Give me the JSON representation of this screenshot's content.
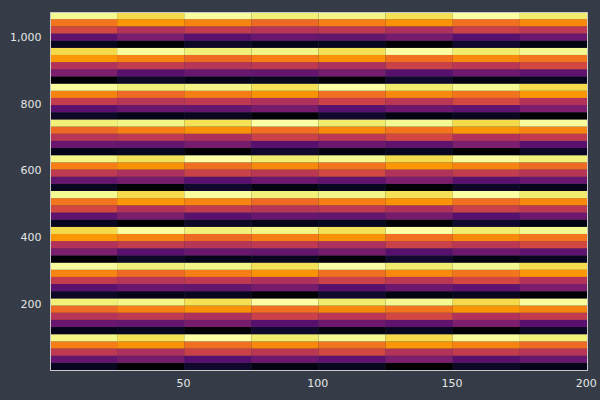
{
  "chart_data": {
    "type": "heatmap",
    "x_edges": [
      0.5,
      25.5,
      50.5,
      75.5,
      100.5,
      125.5,
      150.5,
      175.5,
      200.5
    ],
    "y_edges": [
      0.5,
      22,
      43.5,
      65,
      86.5,
      108,
      129.5,
      151,
      172.5,
      194,
      215.5,
      237,
      258.5,
      280,
      301.5,
      323,
      344.5,
      366,
      387.5,
      409,
      430.5,
      452,
      473.5,
      495,
      516.5,
      538,
      559.5,
      581,
      602.5,
      624,
      645.5,
      667,
      688.5,
      710,
      731.5,
      753,
      774.5,
      796,
      817.5,
      839,
      860.5,
      882,
      903.5,
      925,
      946.5,
      968,
      989.5,
      1011,
      1032.5,
      1054,
      1075.5
    ],
    "values": [
      [
        0.1,
        0.06,
        0.12,
        0.08,
        0.1,
        0.05,
        0.11,
        0.09
      ],
      [
        0.3,
        0.34,
        0.27,
        0.32,
        0.29,
        0.35,
        0.28,
        0.31
      ],
      [
        0.5,
        0.46,
        0.53,
        0.49,
        0.55,
        0.47,
        0.51,
        0.48
      ],
      [
        0.68,
        0.72,
        0.65,
        0.7,
        0.66,
        0.73,
        0.69,
        0.64
      ],
      [
        0.9,
        0.86,
        0.93,
        0.88,
        0.91,
        0.85,
        0.92,
        0.89
      ],
      [
        0.09,
        0.1,
        0.06,
        0.12,
        0.08,
        0.1,
        0.05,
        0.11
      ],
      [
        0.31,
        0.3,
        0.34,
        0.27,
        0.32,
        0.29,
        0.35,
        0.28
      ],
      [
        0.48,
        0.5,
        0.46,
        0.53,
        0.49,
        0.55,
        0.47,
        0.51
      ],
      [
        0.64,
        0.68,
        0.72,
        0.65,
        0.7,
        0.66,
        0.73,
        0.69
      ],
      [
        0.89,
        0.9,
        0.86,
        0.93,
        0.88,
        0.91,
        0.85,
        0.92
      ],
      [
        0.11,
        0.09,
        0.1,
        0.06,
        0.12,
        0.08,
        0.1,
        0.05
      ],
      [
        0.28,
        0.31,
        0.3,
        0.34,
        0.27,
        0.32,
        0.29,
        0.35
      ],
      [
        0.51,
        0.48,
        0.5,
        0.46,
        0.53,
        0.49,
        0.55,
        0.47
      ],
      [
        0.69,
        0.64,
        0.68,
        0.72,
        0.65,
        0.7,
        0.66,
        0.73
      ],
      [
        0.92,
        0.89,
        0.9,
        0.86,
        0.93,
        0.88,
        0.91,
        0.85
      ],
      [
        0.05,
        0.11,
        0.09,
        0.1,
        0.06,
        0.12,
        0.08,
        0.1
      ],
      [
        0.35,
        0.28,
        0.31,
        0.3,
        0.34,
        0.27,
        0.32,
        0.29
      ],
      [
        0.47,
        0.51,
        0.48,
        0.5,
        0.46,
        0.53,
        0.49,
        0.55
      ],
      [
        0.73,
        0.69,
        0.64,
        0.68,
        0.72,
        0.65,
        0.7,
        0.66
      ],
      [
        0.85,
        0.92,
        0.89,
        0.9,
        0.86,
        0.93,
        0.88,
        0.91
      ],
      [
        0.1,
        0.05,
        0.11,
        0.09,
        0.1,
        0.06,
        0.12,
        0.08
      ],
      [
        0.29,
        0.35,
        0.28,
        0.31,
        0.3,
        0.34,
        0.27,
        0.32
      ],
      [
        0.55,
        0.47,
        0.51,
        0.48,
        0.5,
        0.46,
        0.53,
        0.49
      ],
      [
        0.66,
        0.73,
        0.69,
        0.64,
        0.68,
        0.72,
        0.65,
        0.7
      ],
      [
        0.91,
        0.85,
        0.92,
        0.89,
        0.9,
        0.86,
        0.93,
        0.88
      ],
      [
        0.1,
        0.06,
        0.12,
        0.08,
        0.1,
        0.05,
        0.11,
        0.09
      ],
      [
        0.3,
        0.34,
        0.27,
        0.32,
        0.29,
        0.35,
        0.28,
        0.31
      ],
      [
        0.5,
        0.46,
        0.53,
        0.49,
        0.55,
        0.47,
        0.51,
        0.48
      ],
      [
        0.68,
        0.72,
        0.65,
        0.7,
        0.66,
        0.73,
        0.69,
        0.64
      ],
      [
        0.9,
        0.86,
        0.93,
        0.88,
        0.91,
        0.85,
        0.92,
        0.89
      ],
      [
        0.09,
        0.1,
        0.06,
        0.12,
        0.08,
        0.1,
        0.05,
        0.11
      ],
      [
        0.31,
        0.3,
        0.34,
        0.27,
        0.32,
        0.29,
        0.35,
        0.28
      ],
      [
        0.48,
        0.5,
        0.46,
        0.53,
        0.49,
        0.55,
        0.47,
        0.51
      ],
      [
        0.64,
        0.68,
        0.72,
        0.65,
        0.7,
        0.66,
        0.73,
        0.69
      ],
      [
        0.89,
        0.9,
        0.86,
        0.93,
        0.88,
        0.91,
        0.85,
        0.92
      ],
      [
        0.11,
        0.09,
        0.1,
        0.06,
        0.12,
        0.08,
        0.1,
        0.05
      ],
      [
        0.28,
        0.31,
        0.3,
        0.34,
        0.27,
        0.32,
        0.29,
        0.35
      ],
      [
        0.51,
        0.48,
        0.5,
        0.46,
        0.53,
        0.49,
        0.55,
        0.47
      ],
      [
        0.69,
        0.64,
        0.68,
        0.72,
        0.65,
        0.7,
        0.66,
        0.73
      ],
      [
        0.92,
        0.89,
        0.9,
        0.86,
        0.93,
        0.88,
        0.91,
        0.85
      ],
      [
        0.05,
        0.11,
        0.09,
        0.1,
        0.06,
        0.12,
        0.08,
        0.1
      ],
      [
        0.35,
        0.28,
        0.31,
        0.3,
        0.34,
        0.27,
        0.32,
        0.29
      ],
      [
        0.47,
        0.51,
        0.48,
        0.5,
        0.46,
        0.53,
        0.49,
        0.55
      ],
      [
        0.73,
        0.69,
        0.64,
        0.68,
        0.72,
        0.65,
        0.7,
        0.66
      ],
      [
        0.85,
        0.92,
        0.89,
        0.9,
        0.86,
        0.93,
        0.88,
        0.91
      ],
      [
        0.1,
        0.05,
        0.11,
        0.09,
        0.1,
        0.06,
        0.12,
        0.08
      ],
      [
        0.29,
        0.35,
        0.28,
        0.31,
        0.3,
        0.34,
        0.27,
        0.32
      ],
      [
        0.55,
        0.47,
        0.51,
        0.48,
        0.5,
        0.46,
        0.53,
        0.49
      ],
      [
        0.66,
        0.73,
        0.69,
        0.64,
        0.68,
        0.72,
        0.65,
        0.7
      ],
      [
        0.91,
        0.85,
        0.92,
        0.89,
        0.9,
        0.86,
        0.93,
        0.88
      ]
    ],
    "xlim": [
      0.5,
      200.5
    ],
    "xticks": [
      50,
      100,
      150,
      200
    ],
    "ylim": [
      0.5,
      1075.5
    ],
    "yticks": [
      200,
      400,
      600,
      800,
      1000
    ],
    "grid": false
  }
}
